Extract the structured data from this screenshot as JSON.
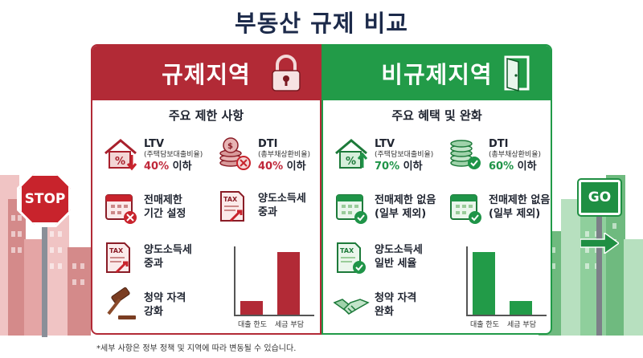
{
  "title": "부동산 규제 비교",
  "signs": {
    "stop": "STOP",
    "go": "GO"
  },
  "regulated": {
    "title": "규제지역",
    "icon": "padlock-icon",
    "color": "#b22a36",
    "subtitle": "주요 제한 사항",
    "ltv": {
      "title": "LTV",
      "sub": "(주택담보대출비율)",
      "value": "40%",
      "suffix": " 이하"
    },
    "dti": {
      "title": "DTI",
      "sub": "(총부채상환비율)",
      "value": "40%",
      "suffix": " 이하"
    },
    "resale": {
      "line1": "전매제한",
      "line2": "기간 설정"
    },
    "tax_top": {
      "line1": "양도소득세",
      "line2": "중과"
    },
    "tax": {
      "line1": "양도소득세",
      "line2": "중과"
    },
    "subscription": {
      "line1": "청약 자격",
      "line2": "강화"
    },
    "chart_labels": [
      "대출 한도",
      "세금 부담"
    ]
  },
  "nonregulated": {
    "title": "비규제지역",
    "icon": "open-door-icon",
    "color": "#229b48",
    "subtitle": "주요 혜택 및 완화",
    "ltv": {
      "title": "LTV",
      "sub": "(주택담보대출비율)",
      "value": "70%",
      "suffix": " 이하"
    },
    "dti": {
      "title": "DTI",
      "sub": "(총부채상환비율)",
      "value": "60%",
      "suffix": " 이하"
    },
    "resale": {
      "line1": "전매제한 없음",
      "line2": "(일부 제외)"
    },
    "resale2": {
      "line1": "전매제한 없음",
      "line2": "(일부 제외)"
    },
    "tax": {
      "line1": "양도소득세",
      "line2": "일반 세율"
    },
    "subscription": {
      "line1": "청약 자격",
      "line2": "완화"
    },
    "chart_labels": [
      "대출 한도",
      "세금 부담"
    ]
  },
  "chart_data": [
    {
      "type": "bar",
      "categories": [
        "대출 한도",
        "세금 부담"
      ],
      "values": [
        0.22,
        1.0
      ],
      "color": "#b22a36"
    },
    {
      "type": "bar",
      "categories": [
        "대출 한도",
        "세금 부담"
      ],
      "values": [
        1.0,
        0.22
      ],
      "color": "#229b48"
    }
  ],
  "footnote": "*세부 사항은 정부 정책 및 지역에 따라 변동될 수 있습니다."
}
